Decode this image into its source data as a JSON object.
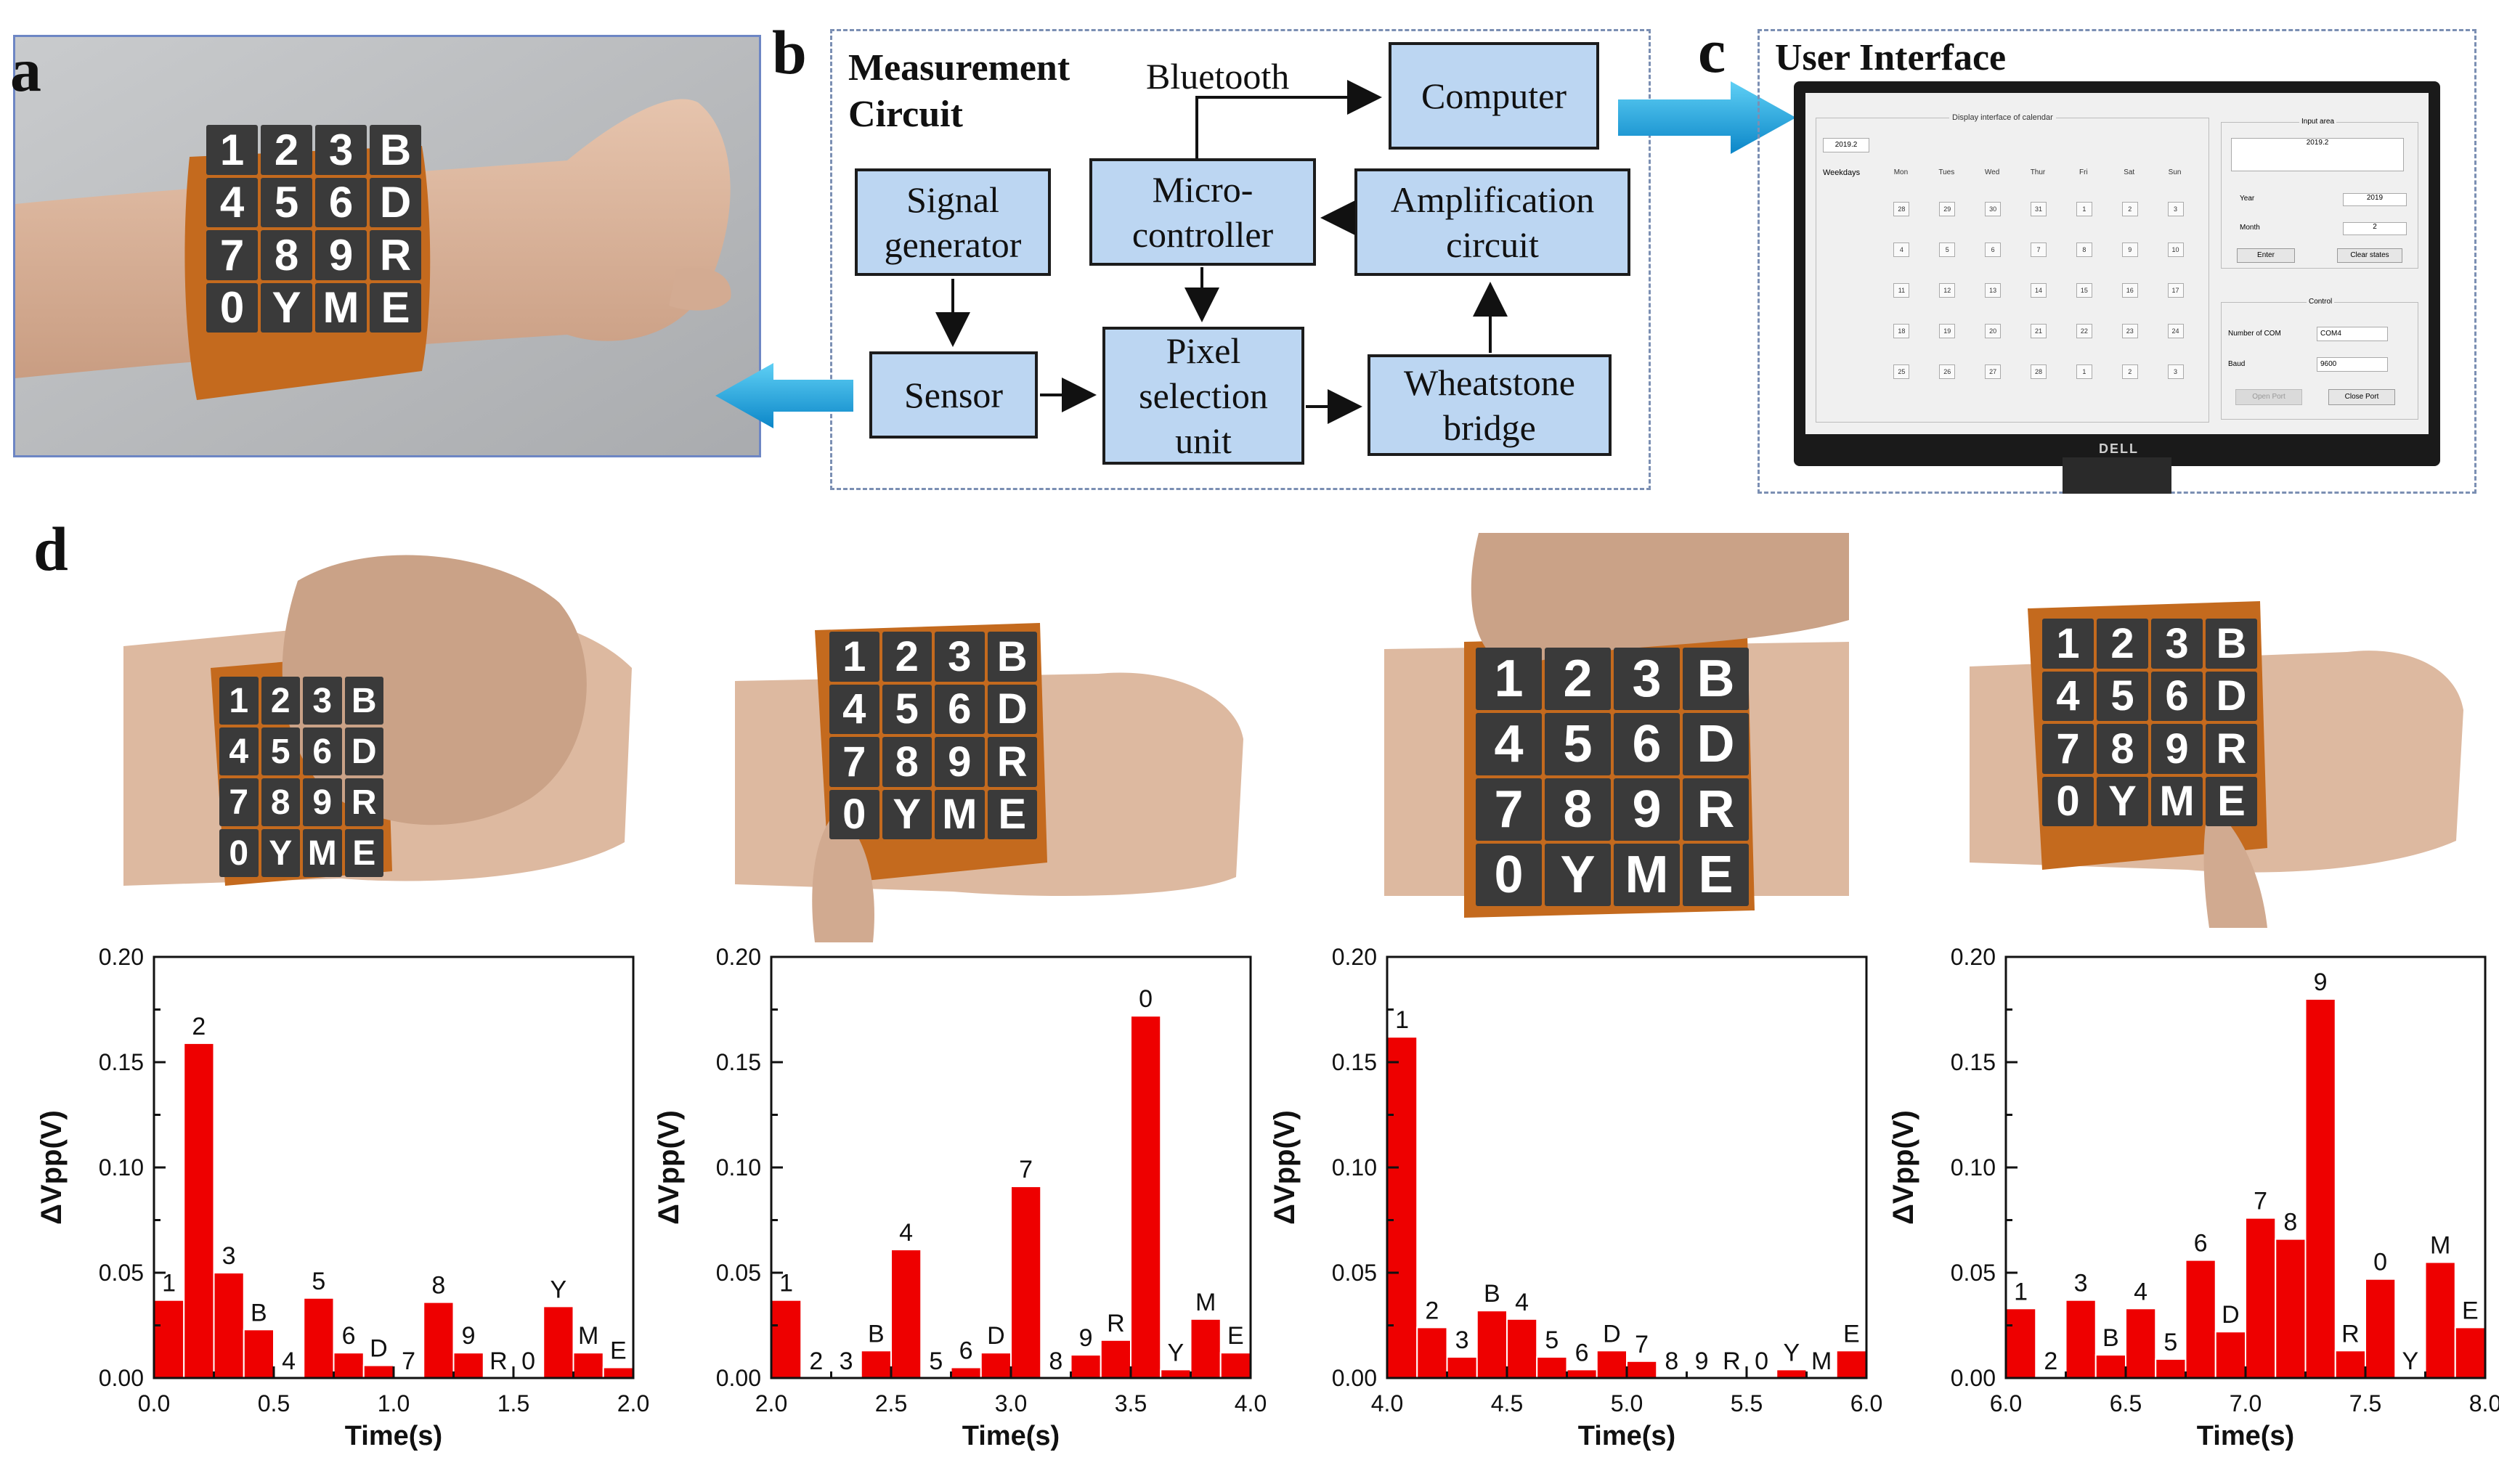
{
  "panels": {
    "a": "a",
    "b": "b",
    "c": "c",
    "d": "d"
  },
  "circuit": {
    "title": "Measurement\nCircuit",
    "bluetooth": "Bluetooth",
    "blocks": {
      "computer": "Computer",
      "signal": "Signal\ngenerator",
      "micro": "Micro-\ncontroller",
      "amp": "Amplification\ncircuit",
      "sensor": "Sensor",
      "pixel": "Pixel\nselection\nunit",
      "bridge": "Wheatstone\nbridge"
    }
  },
  "ui": {
    "title": "User Interface",
    "window_title": "Display interface of calendar",
    "year_field": "2019.2",
    "weekdays_label": "Weekdays",
    "weekdays": [
      "Mon",
      "Tues",
      "Wed",
      "Thur",
      "Fri",
      "Sat",
      "Sun"
    ],
    "calendar": [
      [
        "28",
        "29",
        "30",
        "31",
        "1",
        "2",
        "3"
      ],
      [
        "4",
        "5",
        "6",
        "7",
        "8",
        "9",
        "10"
      ],
      [
        "11",
        "12",
        "13",
        "14",
        "15",
        "16",
        "17"
      ],
      [
        "18",
        "19",
        "20",
        "21",
        "22",
        "23",
        "24"
      ],
      [
        "25",
        "26",
        "27",
        "28",
        "1",
        "2",
        "3"
      ]
    ],
    "input_area": "Input area",
    "input_value": "2019.2",
    "year_label": "Year",
    "year_value": "2019",
    "month_label": "Month",
    "month_value": "2",
    "enter_btn": "Enter",
    "clear_btn": "Clear states",
    "control": "Control",
    "com_label": "Number of COM",
    "com_value": "COM4",
    "baud_label": "Baud",
    "baud_value": "9600",
    "open_btn": "Open Port",
    "close_btn": "Close Port",
    "brand": "DELL"
  },
  "keypad": [
    "1",
    "2",
    "3",
    "B",
    "4",
    "5",
    "6",
    "D",
    "7",
    "8",
    "9",
    "R",
    "0",
    "Y",
    "M",
    "E"
  ],
  "colors": {
    "bar": "#ee0000",
    "block": "#bcd6f2",
    "arrow": "#1aa3df",
    "skin": "#d9b49c",
    "kapton": "#c46a1e"
  },
  "chart_data": [
    {
      "type": "bar",
      "xlabel": "Time(s)",
      "ylabel": "ΔVpp(V)",
      "xlim": [
        0.0,
        2.0
      ],
      "ylim": [
        0.0,
        0.2
      ],
      "xticks": [
        "0.0",
        "0.5",
        "1.0",
        "1.5",
        "2.0"
      ],
      "yticks": [
        "0.00",
        "0.05",
        "0.10",
        "0.15",
        "0.20"
      ],
      "categories": [
        "1",
        "2",
        "3",
        "B",
        "4",
        "5",
        "6",
        "D",
        "7",
        "8",
        "9",
        "R",
        "0",
        "Y",
        "M",
        "E"
      ],
      "x": [
        0.0625,
        0.1875,
        0.3125,
        0.4375,
        0.5625,
        0.6875,
        0.8125,
        0.9375,
        1.0625,
        1.1875,
        1.3125,
        1.4375,
        1.5625,
        1.6875,
        1.8125,
        1.9375
      ],
      "values": [
        0.037,
        0.159,
        0.05,
        0.023,
        0.0,
        0.038,
        0.012,
        0.006,
        0.0,
        0.036,
        0.012,
        0.0,
        0.0,
        0.034,
        0.012,
        0.005
      ]
    },
    {
      "type": "bar",
      "xlabel": "Time(s)",
      "ylabel": "ΔVpp(V)",
      "xlim": [
        2.0,
        4.0
      ],
      "ylim": [
        0.0,
        0.2
      ],
      "xticks": [
        "2.0",
        "2.5",
        "3.0",
        "3.5",
        "4.0"
      ],
      "yticks": [
        "0.00",
        "0.05",
        "0.10",
        "0.15",
        "0.20"
      ],
      "categories": [
        "1",
        "2",
        "3",
        "B",
        "4",
        "5",
        "6",
        "D",
        "7",
        "8",
        "9",
        "R",
        "0",
        "Y",
        "M",
        "E"
      ],
      "x": [
        2.0625,
        2.1875,
        2.3125,
        2.4375,
        2.5625,
        2.6875,
        2.8125,
        2.9375,
        3.0625,
        3.1875,
        3.3125,
        3.4375,
        3.5625,
        3.6875,
        3.8125,
        3.9375
      ],
      "values": [
        0.037,
        0.0,
        0.0,
        0.013,
        0.061,
        0.0,
        0.005,
        0.012,
        0.091,
        0.0,
        0.011,
        0.018,
        0.172,
        0.004,
        0.028,
        0.012
      ]
    },
    {
      "type": "bar",
      "xlabel": "Time(s)",
      "ylabel": "ΔVpp(V)",
      "xlim": [
        4.0,
        6.0
      ],
      "ylim": [
        0.0,
        0.2
      ],
      "xticks": [
        "4.0",
        "4.5",
        "5.0",
        "5.5",
        "6.0"
      ],
      "yticks": [
        "0.00",
        "0.05",
        "0.10",
        "0.15",
        "0.20"
      ],
      "categories": [
        "1",
        "2",
        "3",
        "B",
        "4",
        "5",
        "6",
        "D",
        "7",
        "8",
        "9",
        "R",
        "0",
        "Y",
        "M",
        "E"
      ],
      "x": [
        4.0625,
        4.1875,
        4.3125,
        4.4375,
        4.5625,
        4.6875,
        4.8125,
        4.9375,
        5.0625,
        5.1875,
        5.3125,
        5.4375,
        5.5625,
        5.6875,
        5.8125,
        5.9375
      ],
      "values": [
        0.162,
        0.024,
        0.01,
        0.032,
        0.028,
        0.01,
        0.004,
        0.013,
        0.008,
        0.0,
        0.0,
        0.0,
        0.0,
        0.004,
        0.0,
        0.013
      ]
    },
    {
      "type": "bar",
      "xlabel": "Time(s)",
      "ylabel": "ΔVpp(V)",
      "xlim": [
        6.0,
        8.0
      ],
      "ylim": [
        0.0,
        0.2
      ],
      "xticks": [
        "6.0",
        "6.5",
        "7.0",
        "7.5",
        "8.0"
      ],
      "yticks": [
        "0.00",
        "0.05",
        "0.10",
        "0.15",
        "0.20"
      ],
      "categories": [
        "1",
        "2",
        "3",
        "B",
        "4",
        "5",
        "6",
        "D",
        "7",
        "8",
        "9",
        "R",
        "0",
        "Y",
        "M",
        "E"
      ],
      "x": [
        6.0625,
        6.1875,
        6.3125,
        6.4375,
        6.5625,
        6.6875,
        6.8125,
        6.9375,
        7.0625,
        7.1875,
        7.3125,
        7.4375,
        7.5625,
        7.6875,
        7.8125,
        7.9375
      ],
      "values": [
        0.033,
        0.0,
        0.037,
        0.011,
        0.033,
        0.009,
        0.056,
        0.022,
        0.076,
        0.066,
        0.18,
        0.013,
        0.047,
        0.0,
        0.055,
        0.024
      ]
    }
  ]
}
